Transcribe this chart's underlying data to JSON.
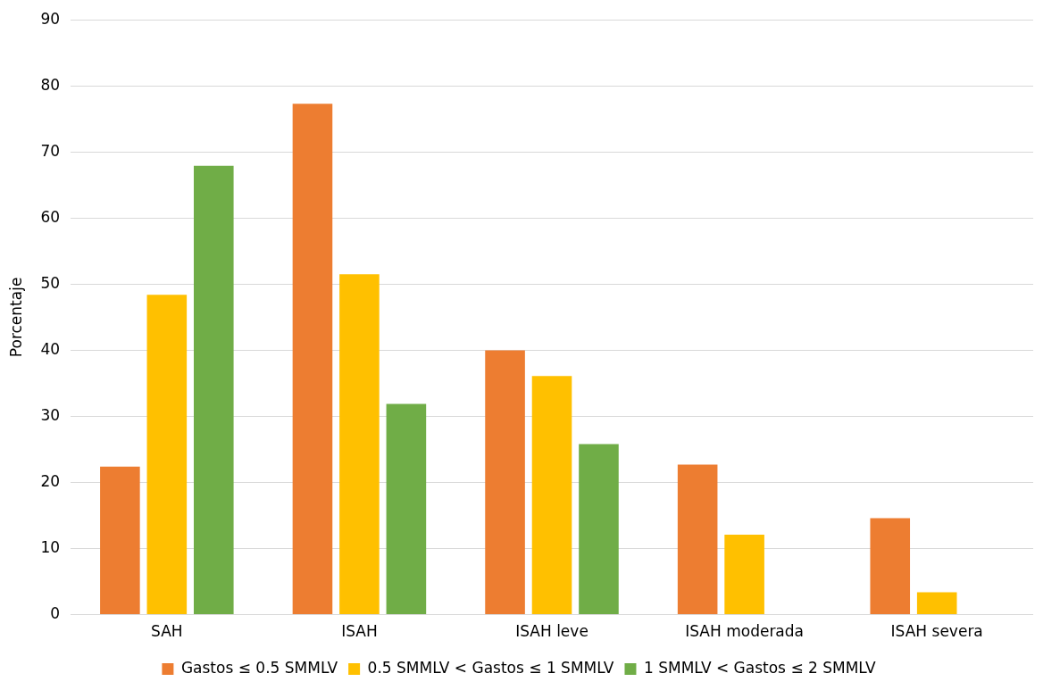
{
  "chart_data": {
    "type": "bar",
    "ylabel": "Porcentaje",
    "categories": [
      "SAH",
      "ISAH",
      "ISAH leve",
      "ISAH moderada",
      "ISAH severa"
    ],
    "series": [
      {
        "name": "Gastos ≤ 0.5 SMMLV",
        "color": "#ed7d31",
        "values": [
          22.4,
          77.3,
          40.0,
          22.7,
          14.6
        ]
      },
      {
        "name": "0.5 SMMLV < Gastos ≤ 1 SMMLV",
        "color": "#ffc000",
        "values": [
          48.4,
          51.5,
          36.1,
          12.1,
          3.4
        ]
      },
      {
        "name": "1 SMMLV < Gastos ≤ 2 SMMLV",
        "color": "#70ad47",
        "values": [
          67.9,
          31.9,
          25.8,
          null,
          null
        ]
      }
    ],
    "ylim": [
      0,
      90
    ],
    "yticks": [
      0,
      10,
      20,
      30,
      40,
      50,
      60,
      70,
      80,
      90
    ],
    "grid": "y",
    "legend": "bottom"
  }
}
